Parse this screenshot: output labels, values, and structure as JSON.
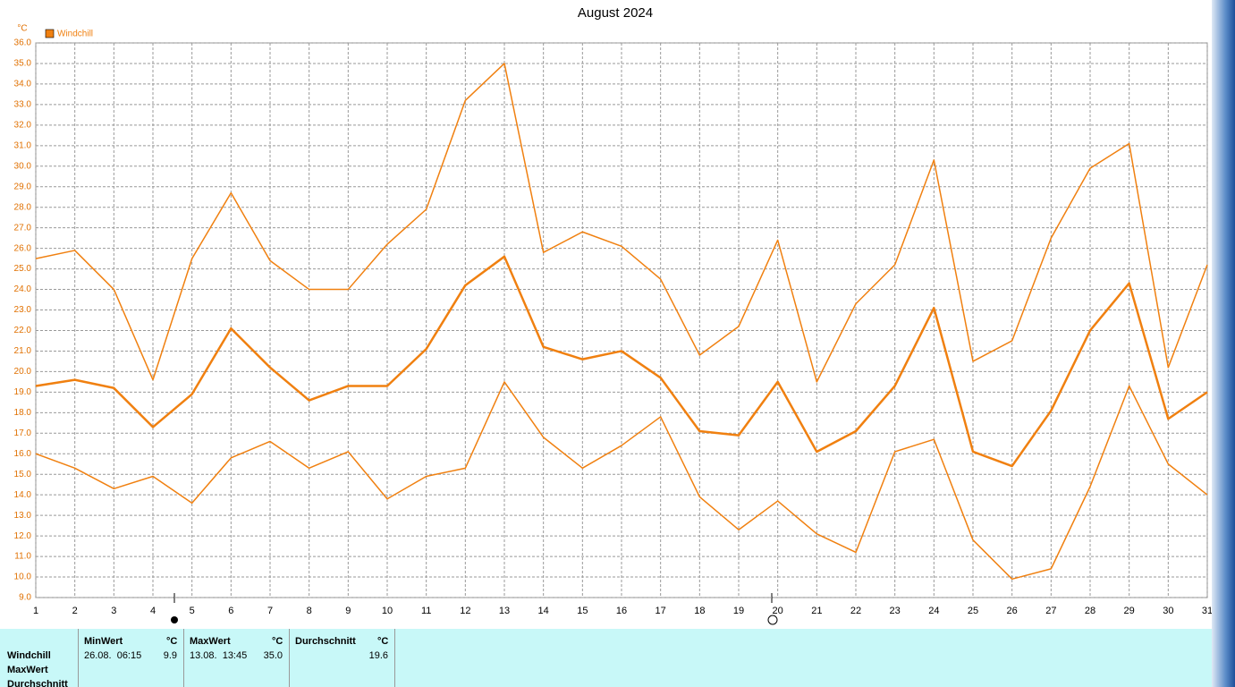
{
  "chart_data": {
    "type": "line",
    "title": "August 2024",
    "y_unit": "°C",
    "legend_corner": "top-left",
    "grid": true,
    "x": [
      1,
      2,
      3,
      4,
      5,
      6,
      7,
      8,
      9,
      10,
      11,
      12,
      13,
      14,
      15,
      16,
      17,
      18,
      19,
      20,
      21,
      22,
      23,
      24,
      25,
      26,
      27,
      28,
      29,
      30,
      31
    ],
    "xlim": [
      1,
      31
    ],
    "xticks": [
      1,
      2,
      3,
      4,
      5,
      6,
      7,
      8,
      9,
      10,
      11,
      12,
      13,
      14,
      15,
      16,
      17,
      18,
      19,
      20,
      21,
      22,
      23,
      24,
      25,
      26,
      27,
      28,
      29,
      30,
      31
    ],
    "ylim": [
      9,
      36
    ],
    "yticks": [
      {
        "value": 9,
        "label": "9.0"
      },
      {
        "value": 10,
        "label": "10.0"
      },
      {
        "value": 11,
        "label": "11.0"
      },
      {
        "value": 12,
        "label": "12.0"
      },
      {
        "value": 13,
        "label": "13.0"
      },
      {
        "value": 14,
        "label": "14.0"
      },
      {
        "value": 15,
        "label": "15.0"
      },
      {
        "value": 16,
        "label": "16.0"
      },
      {
        "value": 17,
        "label": "17.0"
      },
      {
        "value": 18,
        "label": "18.0"
      },
      {
        "value": 19,
        "label": "19.0"
      },
      {
        "value": 20,
        "label": "20.0"
      },
      {
        "value": 21,
        "label": "21.0"
      },
      {
        "value": 22,
        "label": "22.0"
      },
      {
        "value": 23,
        "label": "23.0"
      },
      {
        "value": 24,
        "label": "24.0"
      },
      {
        "value": 25,
        "label": "25.0"
      },
      {
        "value": 26,
        "label": "26.0"
      },
      {
        "value": 27,
        "label": "27.0"
      },
      {
        "value": 28,
        "label": "28.0"
      },
      {
        "value": 29,
        "label": "29.0"
      },
      {
        "value": 30,
        "label": "30.0"
      },
      {
        "value": 31,
        "label": "31.0"
      },
      {
        "value": 32,
        "label": "32.0"
      },
      {
        "value": 33,
        "label": "33.0"
      },
      {
        "value": 34,
        "label": "34.0"
      },
      {
        "value": 35,
        "label": "35.0"
      },
      {
        "value": 36,
        "label": "36.0"
      }
    ],
    "series": [
      {
        "name": "Windchill",
        "color": "#f08010",
        "line_width": 2.5,
        "values": [
          19.3,
          19.6,
          19.2,
          17.3,
          18.9,
          22.1,
          20.2,
          18.6,
          19.3,
          19.3,
          21.1,
          24.2,
          25.6,
          21.2,
          20.6,
          21.0,
          19.7,
          17.1,
          16.9,
          19.5,
          16.1,
          17.1,
          19.3,
          23.1,
          16.1,
          15.4,
          18.1,
          22.0,
          24.3,
          17.7,
          19.0
        ]
      },
      {
        "color": "#f08010",
        "line_width": 1.5,
        "values": [
          25.5,
          25.9,
          24.0,
          19.6,
          25.5,
          28.7,
          25.4,
          24.0,
          24.0,
          26.2,
          27.9,
          33.2,
          35.0,
          25.8,
          26.8,
          26.1,
          24.5,
          20.8,
          22.2,
          26.4,
          19.5,
          23.3,
          25.2,
          30.3,
          20.5,
          21.5,
          26.5,
          29.9,
          31.1,
          20.2,
          25.2
        ]
      },
      {
        "color": "#f08010",
        "line_width": 1.5,
        "values": [
          16.0,
          15.3,
          14.3,
          14.9,
          13.6,
          15.8,
          16.6,
          15.3,
          16.1,
          13.8,
          14.9,
          15.3,
          19.5,
          16.8,
          15.3,
          16.4,
          17.8,
          13.9,
          12.3,
          13.7,
          12.1,
          11.2,
          16.1,
          16.7,
          11.8,
          9.9,
          10.4,
          14.4,
          19.3,
          15.5,
          14.0
        ]
      }
    ]
  },
  "summary_table": {
    "row_labels": [
      "Windchill",
      "MaxWert",
      "Durchschnitt"
    ],
    "columns": [
      {
        "header": "MinWert",
        "unit": "°C",
        "time": "26.08.  06:15",
        "value": "9.9"
      },
      {
        "header": "MaxWert",
        "unit": "°C",
        "time": "13.08.  13:45",
        "value": "35.0"
      },
      {
        "header": "Durchschnitt",
        "unit": "°C",
        "value": "19.6"
      }
    ]
  }
}
